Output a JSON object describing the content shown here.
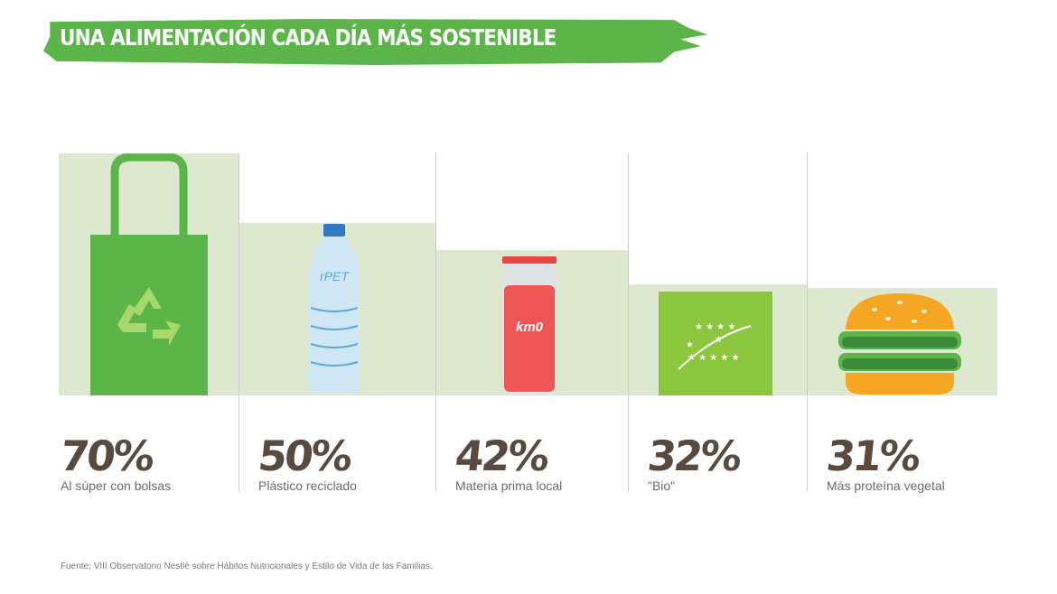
{
  "title": "UNA ALIMENTACIÓN CADA DÍA MÁS SOSTENIBLE",
  "colors": {
    "banner": "#5bb548",
    "bar": "#dde8cf",
    "text": "#5a4a3e"
  },
  "chart_data": {
    "type": "bar",
    "title": "UNA ALIMENTACIÓN CADA DÍA MÁS SOSTENIBLE",
    "categories": [
      "Al súper con bolsas",
      "Plástico reciclado",
      "Materia prima local",
      "\"Bio\"",
      "Más proteína vegetal"
    ],
    "values": [
      70,
      50,
      42,
      32,
      31
    ],
    "value_labels": [
      "70%",
      "50%",
      "42%",
      "32%",
      "31%"
    ],
    "icons": [
      "tote-bag-recycle",
      "water-bottle-rpet",
      "juice-bottle-km0",
      "eu-organic-leaf",
      "burger"
    ],
    "icon_text": {
      "bottle": "rPET",
      "jar": "km0"
    },
    "ylim": [
      0,
      70
    ],
    "source": "Fuente: VIII Observatorio Nestlé sobre Hábitos Nutricionales y Estilo de Vida de las Familias."
  }
}
